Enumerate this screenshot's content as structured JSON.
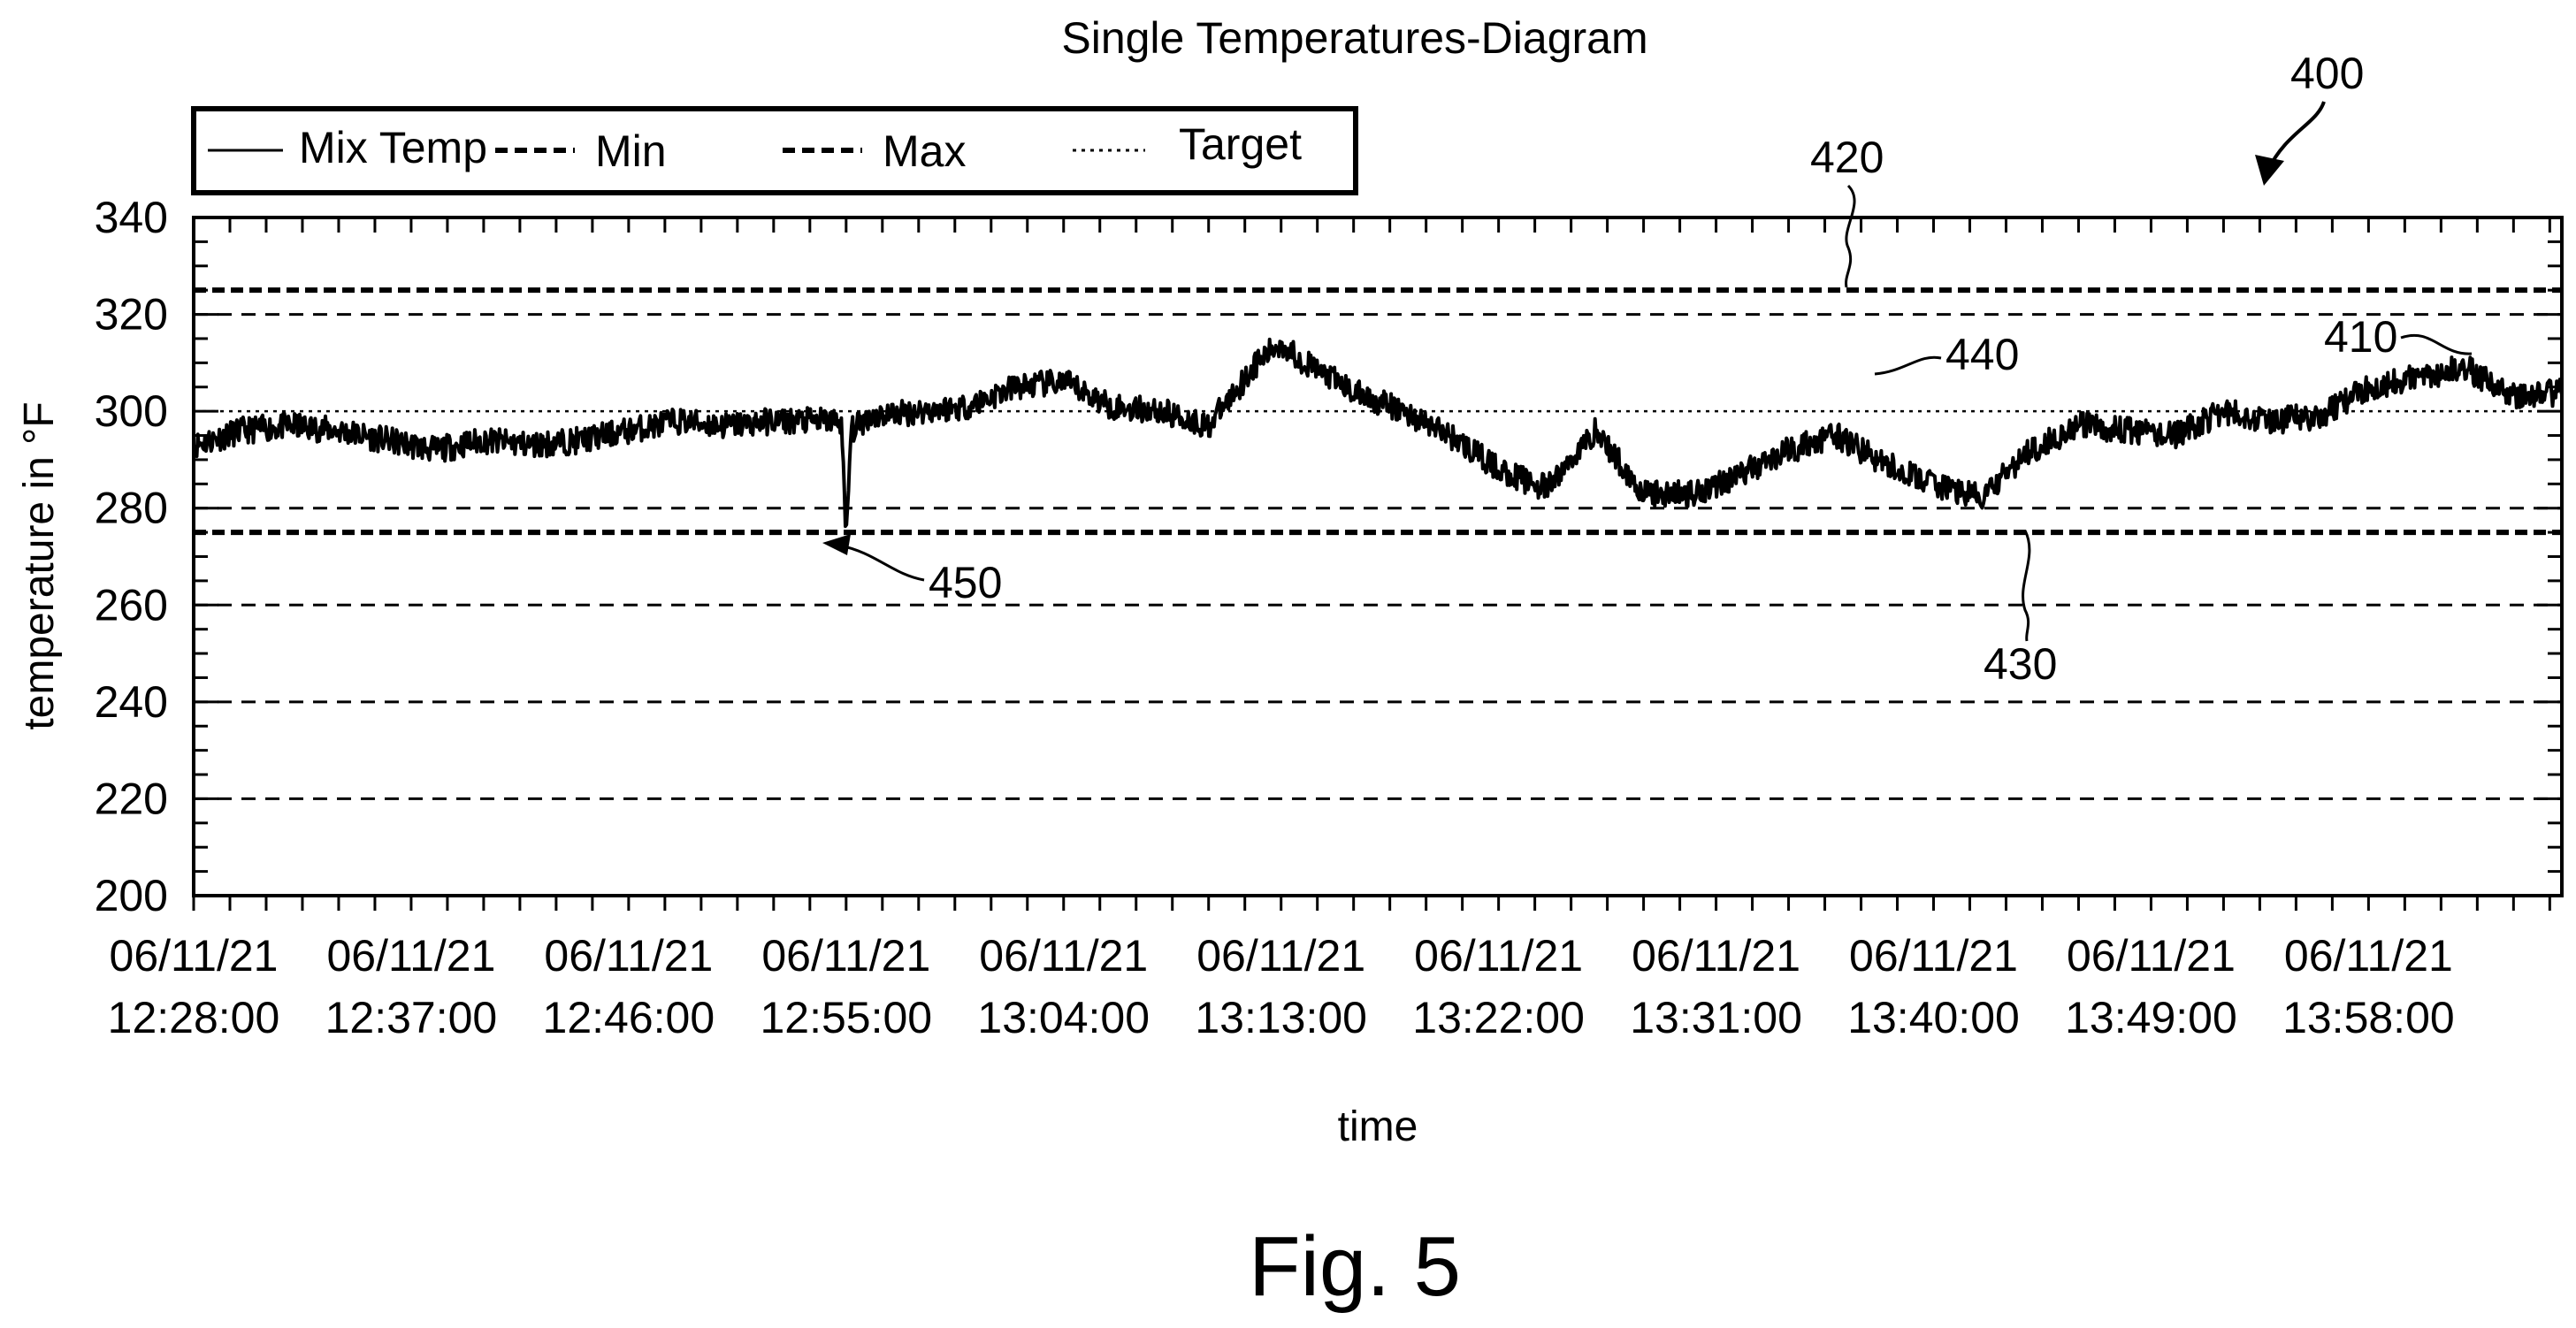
{
  "figure": {
    "caption": "Fig. 5"
  },
  "chart_data": {
    "type": "line",
    "title": "Single Temperatures-Diagram",
    "xlabel": "time",
    "ylabel": "temperature in °F",
    "ylim": [
      200,
      340
    ],
    "yticks": [
      200,
      220,
      240,
      260,
      280,
      300,
      320,
      340
    ],
    "xlim": [
      "12:28:00",
      "14:06:00"
    ],
    "xticks": [
      {
        "date": "06/11/21",
        "time": "12:28:00"
      },
      {
        "date": "06/11/21",
        "time": "12:37:00"
      },
      {
        "date": "06/11/21",
        "time": "12:46:00"
      },
      {
        "date": "06/11/21",
        "time": "12:55:00"
      },
      {
        "date": "06/11/21",
        "time": "13:04:00"
      },
      {
        "date": "06/11/21",
        "time": "13:13:00"
      },
      {
        "date": "06/11/21",
        "time": "13:22:00"
      },
      {
        "date": "06/11/21",
        "time": "13:31:00"
      },
      {
        "date": "06/11/21",
        "time": "13:40:00"
      },
      {
        "date": "06/11/21",
        "time": "13:49:00"
      },
      {
        "date": "06/11/21",
        "time": "13:58:00"
      }
    ],
    "grid": "dashed horizontal at 220, 240, 260, 280, 320",
    "legend_position": "top-left",
    "legend": [
      "Mix Temp",
      "Min",
      "Max",
      "Target"
    ],
    "series": [
      {
        "name": "Mix Temp",
        "style": "solid",
        "x": [
          "12:28:00",
          "12:30:00",
          "12:32:00",
          "12:34:00",
          "12:36:00",
          "12:38:00",
          "12:40:00",
          "12:42:00",
          "12:44:00",
          "12:46:00",
          "12:48:00",
          "12:50:00",
          "12:52:00",
          "12:54:00",
          "12:54:48",
          "12:55:00",
          "12:55:12",
          "12:56:00",
          "12:58:00",
          "13:00:00",
          "13:02:00",
          "13:04:00",
          "13:06:00",
          "13:08:00",
          "13:10:00",
          "13:12:00",
          "13:13:00",
          "13:14:00",
          "13:16:00",
          "13:18:00",
          "13:20:00",
          "13:22:00",
          "13:24:00",
          "13:26:00",
          "13:28:00",
          "13:30:00",
          "13:32:00",
          "13:34:00",
          "13:36:00",
          "13:38:00",
          "13:40:00",
          "13:42:00",
          "13:44:00",
          "13:46:00",
          "13:48:00",
          "13:50:00",
          "13:52:00",
          "13:54:00",
          "13:56:00",
          "13:58:00",
          "14:00:00",
          "14:02:00",
          "14:04:00",
          "14:06:00"
        ],
        "values": [
          293,
          296,
          297,
          296,
          294,
          292,
          294,
          293,
          294,
          296,
          298,
          297,
          298,
          298,
          298,
          273,
          296,
          299,
          300,
          301,
          305,
          306,
          301,
          300,
          297,
          310,
          314,
          310,
          304,
          300,
          295,
          288,
          284,
          296,
          283,
          283,
          287,
          292,
          295,
          289,
          285,
          282,
          292,
          297,
          296,
          295,
          300,
          298,
          299,
          305,
          307,
          309,
          303,
          304
        ]
      },
      {
        "name": "Min",
        "style": "dashed-bold",
        "values": [
          275
        ]
      },
      {
        "name": "Max",
        "style": "dashed-bold",
        "values": [
          325
        ]
      },
      {
        "name": "Target",
        "style": "dotted",
        "values": [
          300
        ]
      }
    ],
    "annotations": [
      {
        "label": "400",
        "target": "figure"
      },
      {
        "label": "410",
        "target": "Mix Temp series",
        "x": "13:57:00",
        "y": 308
      },
      {
        "label": "420",
        "target": "Max line",
        "x": "13:11:00",
        "y": 325
      },
      {
        "label": "430",
        "target": "Min line",
        "x": "13:43:00",
        "y": 275
      },
      {
        "label": "440",
        "target": "Target line",
        "x": "13:42:00",
        "y": 300
      },
      {
        "label": "450",
        "target": "dip",
        "x": "12:55:00",
        "y": 272
      }
    ]
  }
}
